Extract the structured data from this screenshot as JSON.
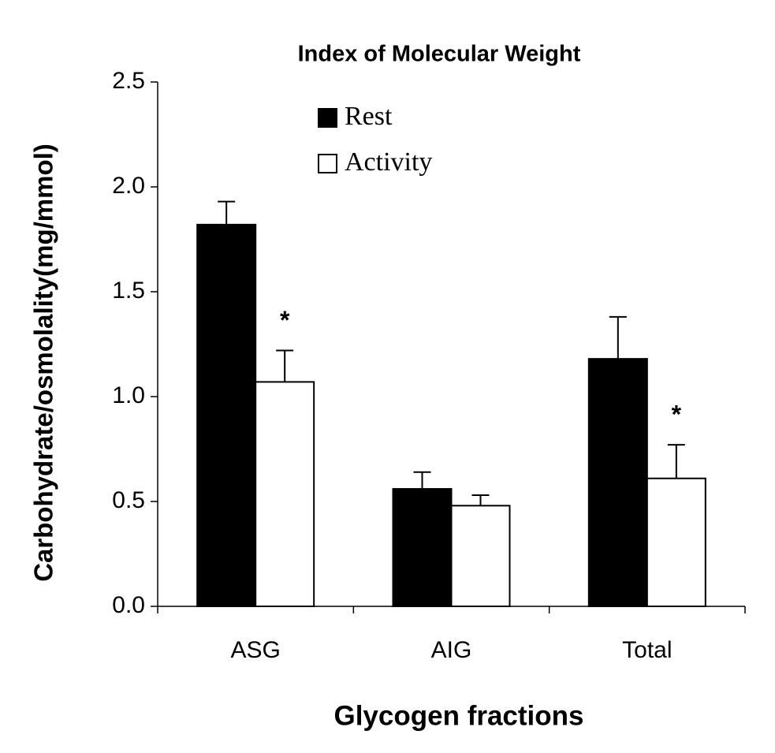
{
  "chart_data": {
    "type": "bar",
    "title": "Index of Molecular Weight",
    "x_label": "Glycogen fractions",
    "y_label": "Carbohydrate/osmolality(mg/mmol)",
    "categories": [
      "ASG",
      "AIG",
      "Total"
    ],
    "series": [
      {
        "name": "Rest",
        "color": "#000000",
        "values": [
          1.82,
          0.56,
          1.18
        ],
        "errors": [
          0.11,
          0.08,
          0.2
        ]
      },
      {
        "name": "Activity",
        "color": "#ffffff",
        "values": [
          1.07,
          0.48,
          0.61
        ],
        "errors": [
          0.15,
          0.05,
          0.16
        ],
        "annotations": [
          "*",
          null,
          "*"
        ]
      }
    ],
    "ylim": [
      0,
      2.5
    ],
    "yticks": [
      {
        "value": 0,
        "label": "0.0"
      },
      {
        "value": 0.5,
        "label": "0.5"
      },
      {
        "value": 1,
        "label": "1.0"
      },
      {
        "value": 1.5,
        "label": "1.5"
      },
      {
        "value": 2,
        "label": "2.0"
      },
      {
        "value": 2.5,
        "label": "2.5"
      }
    ],
    "grid": false,
    "legend": "top-center"
  }
}
